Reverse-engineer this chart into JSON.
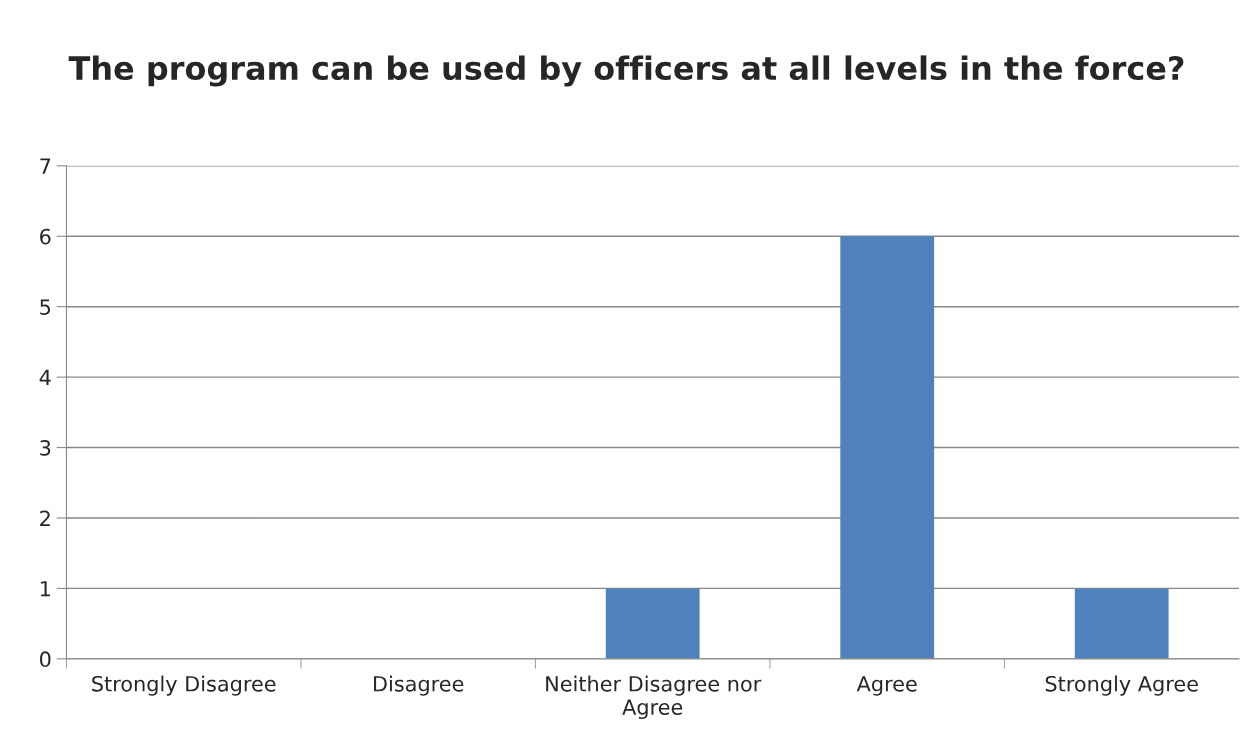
{
  "chart_data": {
    "type": "bar",
    "title": "The program can be used by officers at all levels in the force?",
    "categories": [
      "Strongly Disagree",
      "Disagree",
      "Neither Disagree nor Agree",
      "Agree",
      "Strongly Agree"
    ],
    "values": [
      0,
      0,
      1,
      6,
      1
    ],
    "color": "#4f81bd",
    "ylim": [
      0,
      7
    ],
    "yticks": [
      0,
      1,
      2,
      3,
      4,
      5,
      6,
      7
    ],
    "grid": "y",
    "legend": false
  }
}
